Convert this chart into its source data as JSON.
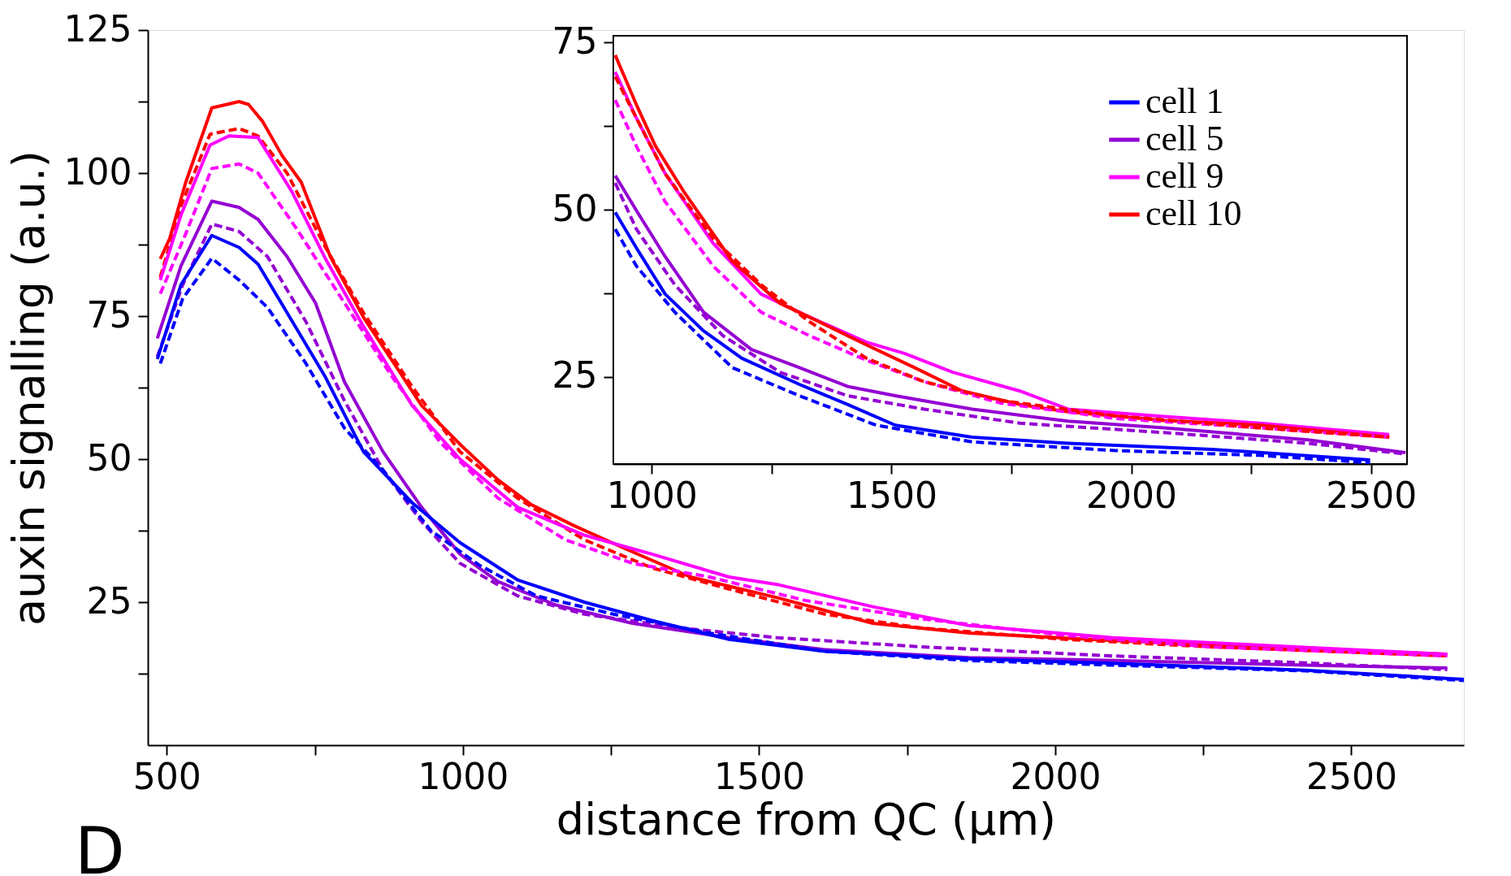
{
  "chart_data": [
    {
      "type": "line",
      "xlabel": "distance from QC (µm)",
      "ylabel": "auxin signalling (a.u.)",
      "xlim": [
        468,
        2690
      ],
      "ylim": [
        0,
        125
      ],
      "xticks": [
        500,
        {
          "value": 750,
          "label": null
        },
        1000,
        {
          "value": 1250,
          "label": null
        },
        1500,
        {
          "value": 1750,
          "label": null
        },
        2000,
        {
          "value": 2250,
          "label": null
        },
        2500
      ],
      "yticks": [
        {
          "value": 12.5,
          "label": null
        },
        25,
        {
          "value": 37.5,
          "label": null
        },
        50,
        {
          "value": 62.5,
          "label": null
        },
        75,
        {
          "value": 87.5,
          "label": null
        },
        100,
        {
          "value": 112.5,
          "label": null
        },
        125
      ],
      "grid": false,
      "legend": false,
      "annotations": [
        "D"
      ],
      "series": [
        {
          "color": "#ff0000",
          "line_style": "solid",
          "x": [
            489,
            505,
            532,
            576,
            597,
            622,
            638,
            662,
            695,
            727,
            776,
            832,
            889,
            930,
            995,
            1059,
            1116,
            1189,
            1286,
            1384,
            1530,
            1692,
            1854,
            2097,
            2341,
            2662
          ],
          "values": [
            85,
            88.6,
            98.4,
            111.4,
            111.9,
            112.5,
            112,
            109,
            103,
            98.4,
            85.4,
            74.8,
            65.9,
            59.4,
            52.6,
            46.4,
            42,
            38.3,
            33.8,
            29.4,
            25.8,
            21.3,
            19.6,
            18.3,
            17.2,
            15.9
          ]
        },
        {
          "color": "#ff0000",
          "line_style": "dashed",
          "x": [
            489,
            524,
            573,
            622,
            654,
            703,
            768,
            832,
            914,
            995,
            1092,
            1205,
            1319,
            1449,
            1611,
            1773,
            2016,
            2259,
            2662
          ],
          "values": [
            81.8,
            94.3,
            106.8,
            107.8,
            106.5,
            100,
            87,
            75.6,
            62.7,
            51.3,
            43.2,
            35.9,
            31,
            27.3,
            22.9,
            20.5,
            18.5,
            17.2,
            15.6
          ]
        },
        {
          "color": "#ff00ff",
          "line_style": "solid",
          "x": [
            489,
            524,
            573,
            605,
            654,
            711,
            768,
            832,
            914,
            995,
            1092,
            1205,
            1319,
            1449,
            1530,
            1692,
            1854,
            2097,
            2341,
            2662
          ],
          "values": [
            81.3,
            92.7,
            104.9,
            106.5,
            106.2,
            96.8,
            85,
            73.2,
            59.4,
            50,
            41.6,
            36.7,
            33.4,
            29.4,
            28.1,
            24.2,
            20.9,
            18.8,
            17.5,
            15.9
          ]
        },
        {
          "color": "#ff00ff",
          "line_style": "dashed",
          "x": [
            489,
            532,
            576,
            622,
            654,
            719,
            800,
            881,
            962,
            1059,
            1173,
            1286,
            1416,
            1578,
            1773,
            2016,
            2259,
            2662
          ],
          "values": [
            78.9,
            89.4,
            100.8,
            101.6,
            100,
            90.3,
            77.3,
            64.3,
            52.9,
            43.2,
            35.9,
            31.8,
            29.4,
            25.3,
            22.1,
            19.2,
            17.2,
            15.6
          ]
        },
        {
          "color": "#9400d3",
          "line_style": "solid",
          "x": [
            484,
            524,
            576,
            622,
            654,
            703,
            751,
            800,
            865,
            930,
            995,
            1059,
            1157,
            1286,
            1449,
            1611,
            1854,
            2097,
            2421,
            2662
          ],
          "values": [
            71.1,
            83.8,
            95.1,
            94,
            91.9,
            85.4,
            77.3,
            63.5,
            51.3,
            41.6,
            33.4,
            28.6,
            24.5,
            21.3,
            18.8,
            16.7,
            15.3,
            14.8,
            14,
            13.5
          ]
        },
        {
          "color": "#9400d3",
          "line_style": "dashed",
          "x": [
            484,
            527,
            576,
            622,
            670,
            735,
            800,
            865,
            930,
            995,
            1092,
            1205,
            1368,
            1530,
            1773,
            2097,
            2421,
            2662
          ],
          "values": [
            67.9,
            80.5,
            91.1,
            89.8,
            85.4,
            74,
            60.2,
            48.1,
            39.1,
            31.8,
            26.1,
            22.9,
            20.5,
            18.8,
            17.2,
            15.6,
            14.4,
            13.2
          ]
        },
        {
          "color": "#0000ff",
          "line_style": "solid",
          "x": [
            484,
            524,
            576,
            622,
            654,
            703,
            768,
            832,
            914,
            995,
            1092,
            1205,
            1319,
            1449,
            1611,
            1854,
            2097,
            2421,
            2690
          ],
          "values": [
            67.5,
            80.5,
            89.1,
            87,
            84.1,
            75.6,
            64.3,
            51.3,
            42.4,
            35.4,
            28.9,
            25,
            21.8,
            18.5,
            16.4,
            15.1,
            14.3,
            13.1,
            11.5
          ]
        },
        {
          "color": "#0000ff",
          "line_style": "dashed",
          "x": [
            489,
            527,
            576,
            622,
            670,
            735,
            800,
            865,
            946,
            1027,
            1124,
            1254,
            1416,
            1611,
            1854,
            2097,
            2421,
            2690
          ],
          "values": [
            66.7,
            78.1,
            85.1,
            81.3,
            76.5,
            66.7,
            55.4,
            48.1,
            37.5,
            31.5,
            26.1,
            22.9,
            19.6,
            16.4,
            14.8,
            14,
            13,
            11.3
          ]
        }
      ]
    },
    {
      "type": "line",
      "xlim": [
        920,
        2575
      ],
      "ylim": [
        12,
        76
      ],
      "xticks": [
        1000,
        {
          "value": 1250,
          "label": null
        },
        1500,
        {
          "value": 1750,
          "label": null
        },
        2000,
        {
          "value": 2250,
          "label": null
        },
        2500
      ],
      "yticks": [
        25,
        {
          "value": 37.5,
          "label": null
        },
        50,
        {
          "value": 62.5,
          "label": null
        },
        75
      ],
      "grid": false,
      "legend": "top right",
      "series": [
        {
          "name": "cell 1",
          "color": "#0000ff",
          "line_style": "solid",
          "x": [
            924,
            968,
            1028,
            1108,
            1188,
            1308,
            1408,
            1508,
            1668,
            1868,
            2168,
            2498
          ],
          "values": [
            49.6,
            44.3,
            37.4,
            31.9,
            27.8,
            23.9,
            20.9,
            17.8,
            16,
            15.1,
            14.2,
            12.6
          ]
        },
        {
          "name": "cell 5",
          "color": "#9400d3",
          "line_style": "solid",
          "x": [
            924,
            968,
            1028,
            1108,
            1208,
            1308,
            1408,
            1508,
            1668,
            1868,
            2068,
            2368,
            2572
          ],
          "values": [
            55.1,
            49.9,
            43,
            34.7,
            29.1,
            26.4,
            23.6,
            22.2,
            20.2,
            18.4,
            17.4,
            15.6,
            13.7
          ]
        },
        {
          "name": "cell 9",
          "color": "#ff00ff",
          "line_style": "solid",
          "x": [
            924,
            968,
            1028,
            1128,
            1228,
            1328,
            1448,
            1528,
            1628,
            1768,
            1868,
            2068,
            2268,
            2538
          ],
          "values": [
            70.6,
            63.7,
            55.4,
            45,
            37.4,
            34,
            30.2,
            28.5,
            25.7,
            22.9,
            20.2,
            19.1,
            18.1,
            16.4
          ]
        },
        {
          "name": "cell 10",
          "color": "#ff0000",
          "line_style": "solid",
          "x": [
            924,
            968,
            1008,
            1068,
            1168,
            1268,
            1348,
            1448,
            1548,
            1648,
            1768,
            1868,
            2068,
            2268,
            2538
          ],
          "values": [
            73.1,
            65.7,
            59.5,
            52.6,
            42.3,
            36,
            33.3,
            29.8,
            26.4,
            22.9,
            20.9,
            19.8,
            18.5,
            17.8,
            16
          ]
        },
        {
          "color": "#0000ff",
          "line_style": "dashed",
          "x": [
            924,
            968,
            1048,
            1168,
            1308,
            1468,
            1668,
            1968,
            2268,
            2498
          ],
          "values": [
            47.1,
            41.6,
            34.7,
            26.4,
            22.2,
            17.8,
            15.3,
            14,
            13.3,
            12.2
          ]
        },
        {
          "color": "#9400d3",
          "line_style": "dashed",
          "x": [
            924,
            968,
            1048,
            1148,
            1268,
            1408,
            1568,
            1768,
            2068,
            2368,
            2572
          ],
          "values": [
            54,
            47.1,
            38.8,
            31.2,
            25.7,
            22.2,
            20.2,
            18.1,
            16.7,
            15.1,
            13.5
          ]
        },
        {
          "color": "#ff00ff",
          "line_style": "dashed",
          "x": [
            924,
            968,
            1028,
            1128,
            1228,
            1328,
            1448,
            1568,
            1728,
            1968,
            2268,
            2538
          ],
          "values": [
            66.4,
            59.5,
            51.2,
            41.6,
            34.7,
            31.2,
            27.5,
            24.3,
            21.1,
            18.8,
            17.4,
            16
          ]
        },
        {
          "color": "#ff0000",
          "line_style": "dashed",
          "x": [
            924,
            968,
            1028,
            1128,
            1228,
            1328,
            1448,
            1568,
            1728,
            1968,
            2268,
            2538
          ],
          "values": [
            69.9,
            63.7,
            55.4,
            45.7,
            38.8,
            33.3,
            27.8,
            24.3,
            21.5,
            19.2,
            17.4,
            16
          ]
        }
      ]
    }
  ]
}
